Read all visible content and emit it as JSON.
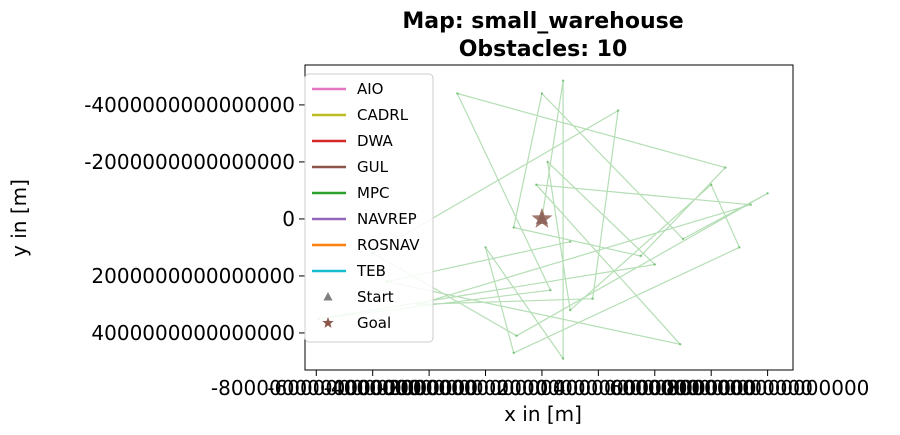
{
  "chart_data": {
    "type": "line",
    "title": "Map: small_warehouse",
    "subtitle": "Obstacles: 10",
    "xlabel": "x in [m]",
    "ylabel": "y in [m]",
    "xlim": [
      -8400000000000000,
      8900000000000000
    ],
    "ylim": [
      5300000000000000,
      -5400000000000000
    ],
    "y_inverted": true,
    "x_ticks": [
      -8000000000000000,
      -6000000000000000,
      -4000000000000000,
      -2000000000000000,
      0,
      2000000000000000,
      4000000000000000,
      6000000000000000,
      8000000000000000
    ],
    "x_tick_labels": [
      "-8000000000000000",
      "-6000000000000000",
      "-4000000000000000",
      "-2000000000000000",
      "0",
      "2000000000000000",
      "4000000000000000",
      "6000000000000000",
      "8000000000000000"
    ],
    "y_ticks": [
      -4000000000000000,
      -2000000000000000,
      0,
      2000000000000000,
      4000000000000000
    ],
    "y_tick_labels": [
      "-4000000000000000",
      "-2000000000000000",
      "0",
      "2000000000000000",
      "4000000000000000"
    ],
    "grid": false,
    "legend_position": "upper-left",
    "series": [
      {
        "name": "AIO",
        "color": "#e377c2",
        "points": []
      },
      {
        "name": "CADRL",
        "color": "#bcbd22",
        "points": []
      },
      {
        "name": "DWA",
        "color": "#d62728",
        "points": []
      },
      {
        "name": "GUL",
        "color": "#8c564b",
        "points": []
      },
      {
        "name": "MPC",
        "color": "#2ca02c",
        "points": [
          [
            0,
            0
          ],
          [
            750000000000000,
            -4850000000000000
          ],
          [
            750000000000000,
            4900000000000000
          ],
          [
            -2000000000000000,
            1000000000000000
          ],
          [
            -1000000000000000,
            4700000000000000
          ],
          [
            7000000000000000,
            1000000000000000
          ],
          [
            6000000000000000,
            -1200000000000000
          ],
          [
            1000000000000000,
            3200000000000000
          ],
          [
            200000000000000,
            -2000000000000000
          ],
          [
            4000000000000000,
            1600000000000000
          ],
          [
            -7900000000000000,
            3500000000000000
          ],
          [
            300000000000000,
            2500000000000000
          ],
          [
            -3000000000000000,
            -4400000000000000
          ],
          [
            6500000000000000,
            -1800000000000000
          ],
          [
            3500000000000000,
            1300000000000000
          ],
          [
            -1000000000000000,
            300000000000000
          ],
          [
            0,
            -4400000000000000
          ],
          [
            5000000000000000,
            700000000000000
          ],
          [
            8000000000000000,
            -900000000000000
          ],
          [
            -900000000000000,
            4100000000000000
          ],
          [
            -6000000000000000,
            1200000000000000
          ],
          [
            2700000000000000,
            -3800000000000000
          ],
          [
            1800000000000000,
            2800000000000000
          ],
          [
            -4400000000000000,
            3000000000000000
          ],
          [
            7400000000000000,
            -500000000000000
          ],
          [
            -200000000000000,
            -1200000000000000
          ],
          [
            4900000000000000,
            4400000000000000
          ],
          [
            -5500000000000000,
            2200000000000000
          ],
          [
            1000000000000000,
            800000000000000
          ]
        ]
      },
      {
        "name": "NAVREP",
        "color": "#9467bd",
        "points": []
      },
      {
        "name": "ROSNAV",
        "color": "#ff7f0e",
        "points": []
      },
      {
        "name": "TEB",
        "color": "#17becf",
        "points": []
      }
    ],
    "markers": [
      {
        "name": "Start",
        "shape": "triangle",
        "color": "#7f7f7f",
        "x": 0,
        "y": 0
      },
      {
        "name": "Goal",
        "shape": "star",
        "color": "#8c564b",
        "x": 0,
        "y": 0
      }
    ],
    "legend": [
      "AIO",
      "CADRL",
      "DWA",
      "GUL",
      "MPC",
      "NAVREP",
      "ROSNAV",
      "TEB",
      "Start",
      "Goal"
    ]
  }
}
